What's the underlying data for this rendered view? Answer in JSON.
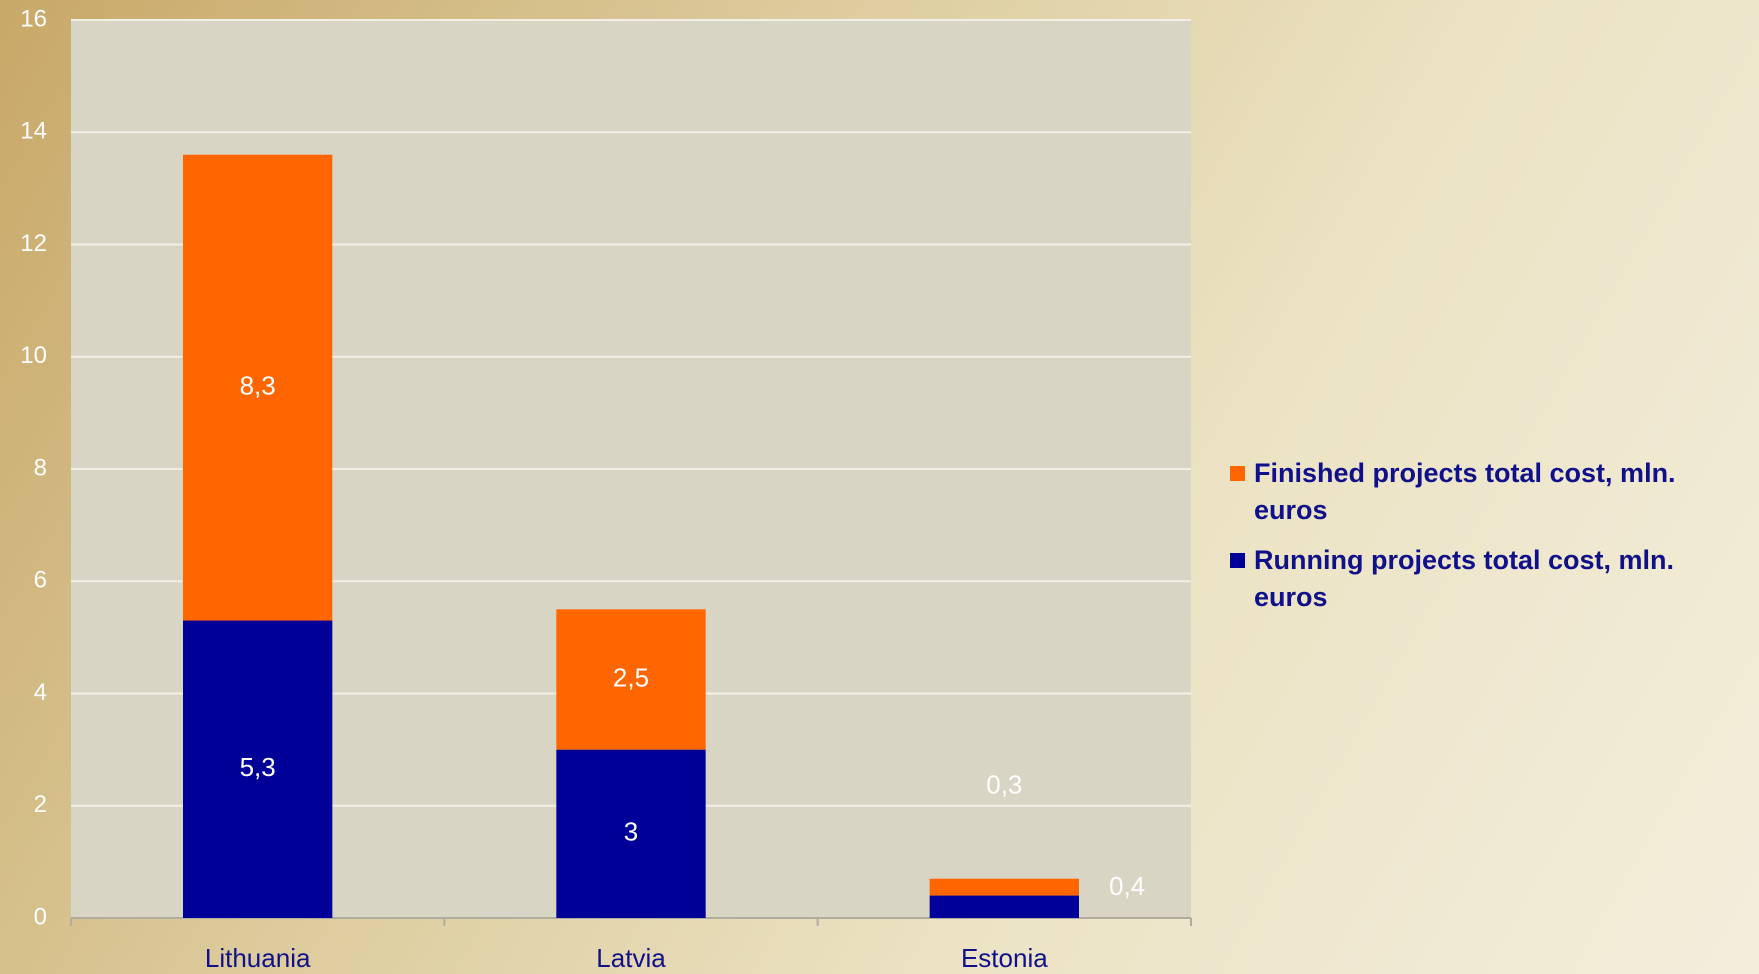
{
  "chart_data": {
    "type": "stacked_bar",
    "categories": [
      "Lithuania",
      "Latvia",
      "Estonia"
    ],
    "series": [
      {
        "name": "Running projects total cost, mln. euros",
        "color": "#000099",
        "values": [
          5.3,
          3,
          0.4
        ],
        "value_labels": [
          "5,3",
          "3",
          "0,4"
        ]
      },
      {
        "name": "Finished projects total cost, mln. euros",
        "color": "#ff6600",
        "values": [
          8.3,
          2.5,
          0.3
        ],
        "value_labels": [
          "8,3",
          "2,5",
          "0,3"
        ]
      }
    ],
    "ylim": [
      0,
      16
    ],
    "yticks": [
      0,
      2,
      4,
      6,
      8,
      10,
      12,
      14,
      16
    ],
    "grid": true,
    "legend": "right"
  }
}
